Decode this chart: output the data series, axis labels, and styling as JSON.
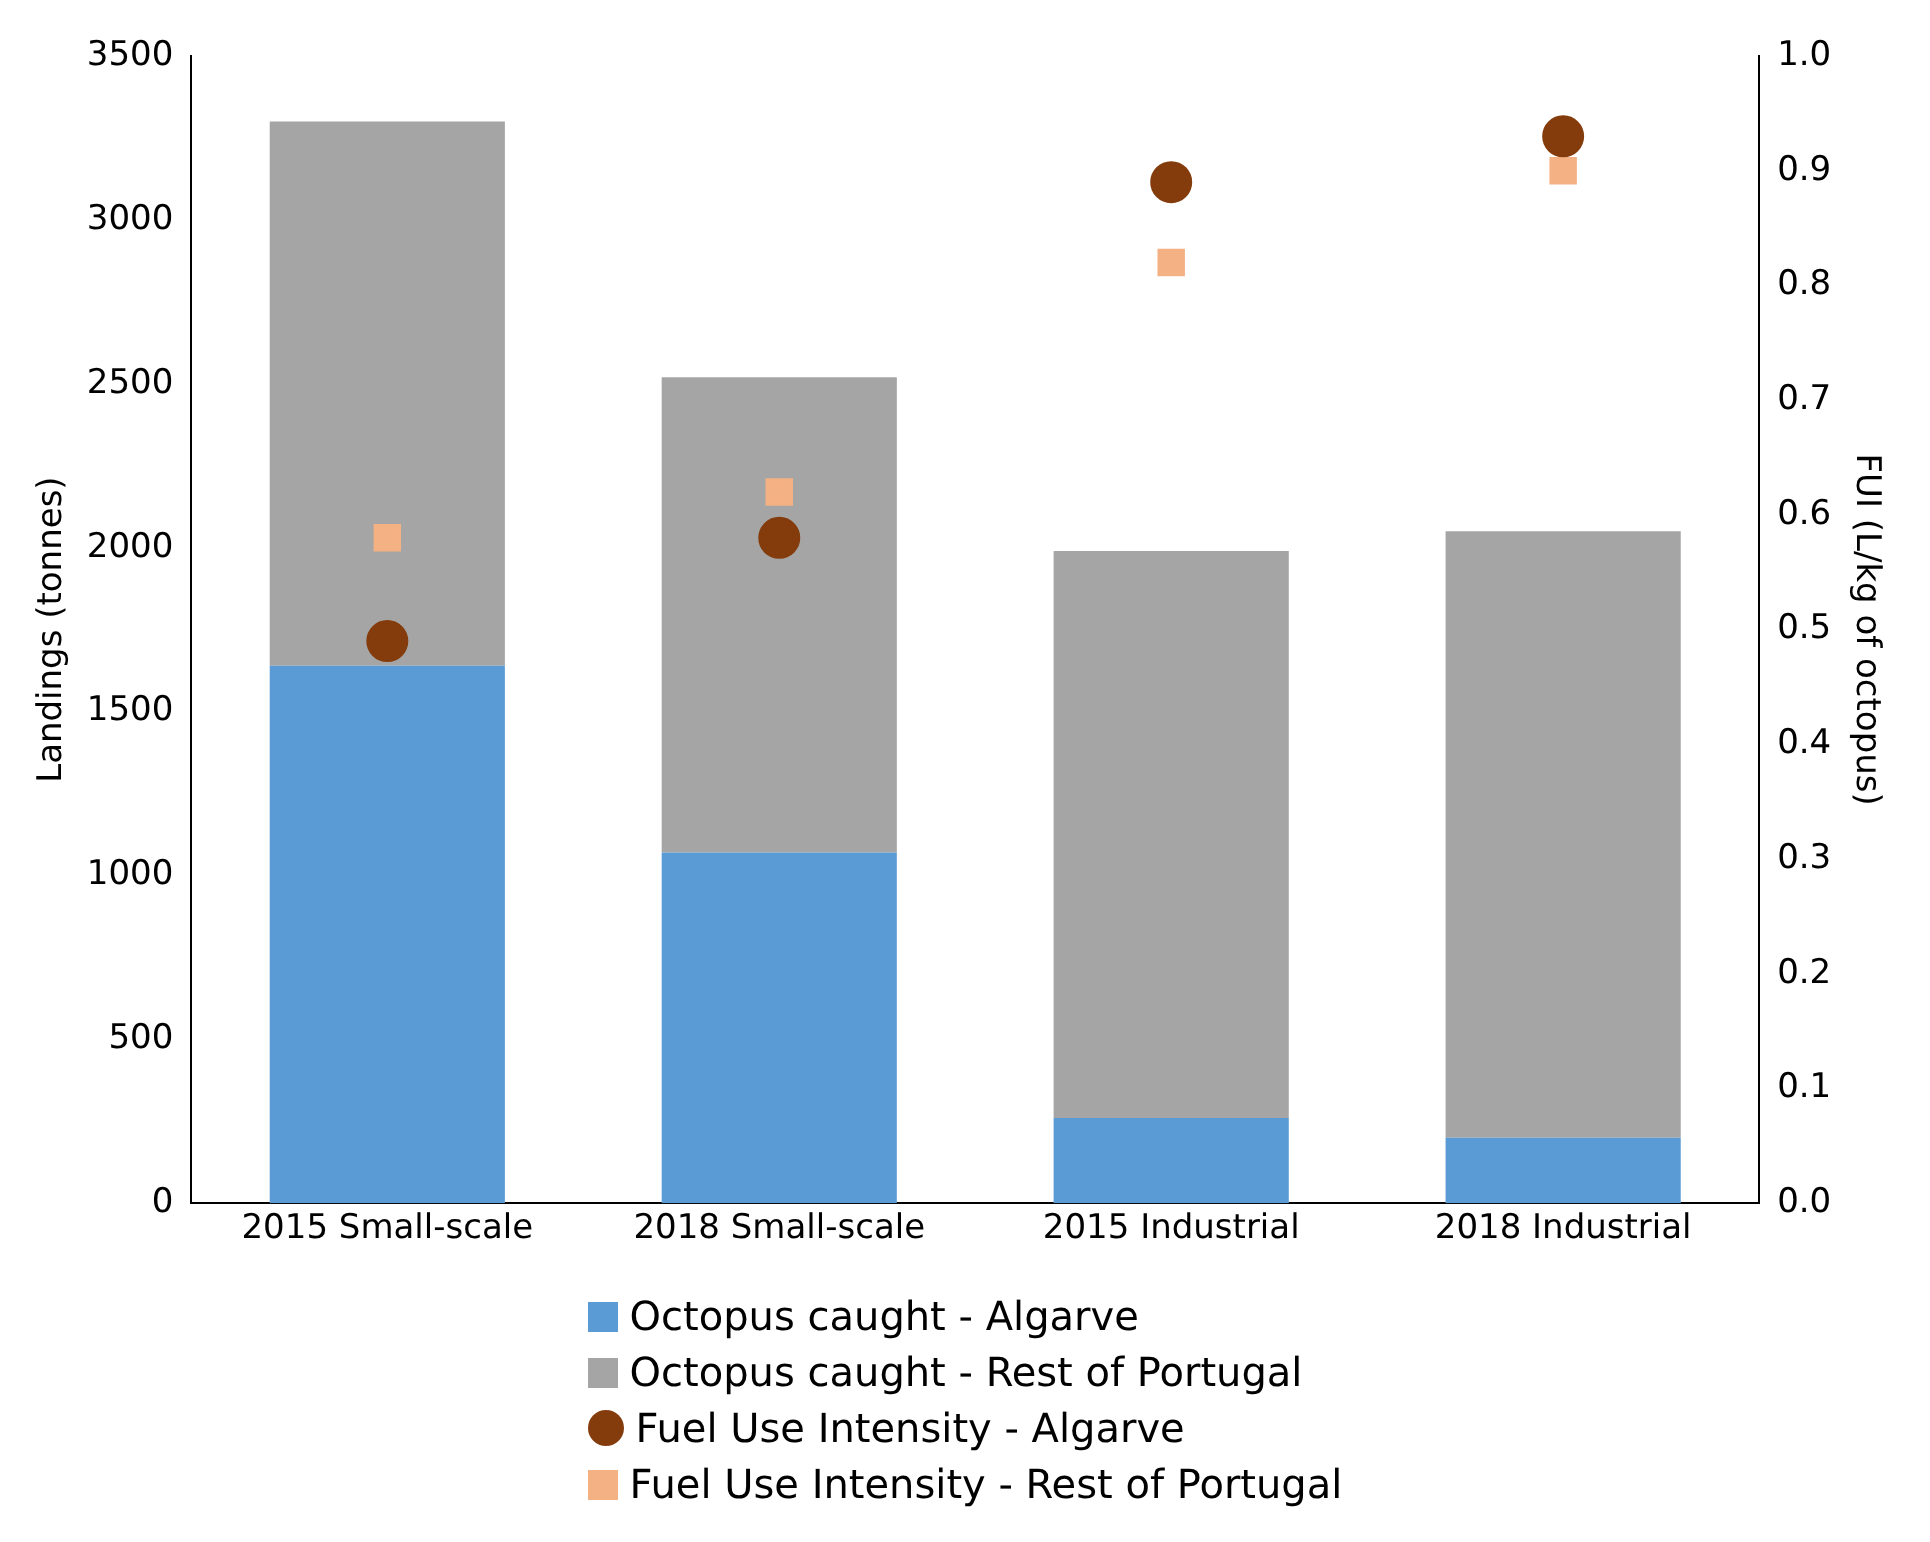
{
  "chart_data": {
    "type": "bar",
    "stacked": true,
    "categories": [
      "2015 Small-scale",
      "2018 Small-scale",
      "2015 Industrial",
      "2018 Industrial"
    ],
    "ylabel": "Landings (tonnes)",
    "y2label": "FUI (L/kg of octopus)",
    "ylim": [
      0,
      3500
    ],
    "yticks": [
      0,
      500,
      1000,
      1500,
      2000,
      2500,
      3000,
      3500
    ],
    "y2lim": [
      0,
      1.0
    ],
    "y2ticks": [
      {
        "value": 0,
        "label": "0.0"
      },
      {
        "value": 0.1,
        "label": "0.1"
      },
      {
        "value": 0.2,
        "label": "0.2"
      },
      {
        "value": 0.3,
        "label": "0.3"
      },
      {
        "value": 0.4,
        "label": "0.4"
      },
      {
        "value": 0.5,
        "label": "0.5"
      },
      {
        "value": 0.6,
        "label": "0.6"
      },
      {
        "value": 0.7,
        "label": "0.7"
      },
      {
        "value": 0.8,
        "label": "0.8"
      },
      {
        "value": 0.9,
        "label": "0.9"
      },
      {
        "value": 1.0,
        "label": "1.0"
      }
    ],
    "grid": false,
    "legend": "bottom",
    "series": [
      {
        "name": "Octopus caught - Algarve",
        "color": "#5b9bd5",
        "values": [
          1640,
          1070,
          260,
          200
        ]
      },
      {
        "name": "Octopus caught - Rest of Portugal",
        "color": "#a5a5a5",
        "values": [
          1660,
          1450,
          1730,
          1850
        ]
      },
      {
        "name": "Fuel Use Intensity - Algarve",
        "type": "scatter",
        "axis": "y2",
        "marker": "circle",
        "color": "#843c0c",
        "x": [
          "2015 Small-scale",
          "2018 Small-scale",
          "2015 Industrial",
          "2018 Industrial"
        ],
        "values": [
          0.49,
          0.58,
          0.89,
          0.93
        ]
      },
      {
        "name": "Fuel Use Intensity - Rest of Portugal",
        "type": "scatter",
        "axis": "y2",
        "marker": "square",
        "color": "#f4b183",
        "x": [
          "2015 Small-scale",
          "2018 Small-scale",
          "2015 Industrial",
          "2018 Industrial"
        ],
        "values": [
          0.58,
          0.62,
          0.82,
          0.9
        ]
      }
    ]
  }
}
